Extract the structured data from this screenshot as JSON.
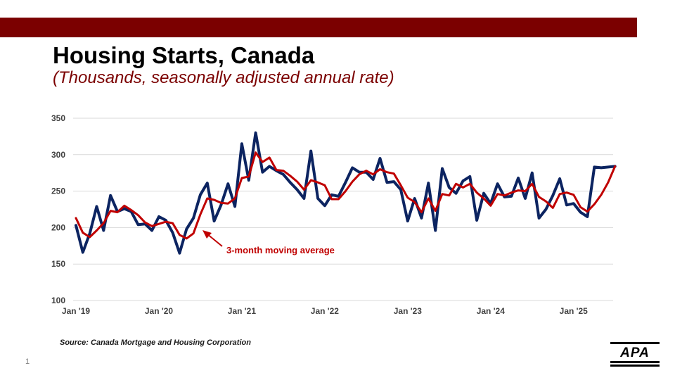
{
  "slide": {
    "title": "Housing Starts, Canada",
    "subtitle": "(Thousands, seasonally adjusted annual rate)",
    "source": "Source: Canada Mortgage and Housing Corporation",
    "page_number": "1",
    "logo_text": "APA",
    "colors": {
      "bar": "#7b0000",
      "title": "#000000",
      "subtitle": "#7b0000"
    }
  },
  "chart_data": {
    "type": "line",
    "title": "",
    "xlabel": "",
    "ylabel": "",
    "ylim": [
      100,
      350
    ],
    "y_ticks": [
      "100",
      "150",
      "200",
      "250",
      "300",
      "350"
    ],
    "x_tick_labels": [
      "Jan '19",
      "Jan '20",
      "Jan '21",
      "Jan '22",
      "Jan '23",
      "Jan '24",
      "Jan '25"
    ],
    "x_start": "Jan 2019",
    "x_end": "Jul 2025",
    "grid": true,
    "annotation": {
      "text": "3-month moving average",
      "color": "#c00000"
    },
    "series": [
      {
        "key": "monthly",
        "color": "#0c2461",
        "values": [
          203,
          166,
          192,
          229,
          196,
          244,
          222,
          226,
          222,
          204,
          205,
          196,
          215,
          210,
          193,
          165,
          198,
          213,
          245,
          261,
          209,
          231,
          260,
          229,
          315,
          265,
          330,
          276,
          284,
          278,
          273,
          262,
          252,
          240,
          305,
          240,
          230,
          245,
          243,
          262,
          282,
          276,
          276,
          266,
          295,
          262,
          263,
          252,
          209,
          240,
          213,
          261,
          196,
          281,
          255,
          247,
          264,
          270,
          210,
          247,
          233,
          260,
          242,
          243,
          268,
          240,
          275,
          213,
          225,
          244,
          267,
          231,
          233,
          221,
          215,
          283,
          282,
          283,
          284
        ]
      },
      {
        "key": "moving_average",
        "color": "#c00000",
        "values": [
          213,
          193,
          187,
          196,
          206,
          223,
          221,
          230,
          224,
          217,
          207,
          202,
          205,
          208,
          206,
          190,
          185,
          192,
          218,
          240,
          238,
          234,
          233,
          240,
          268,
          270,
          303,
          290,
          296,
          279,
          278,
          271,
          263,
          252,
          265,
          262,
          258,
          239,
          239,
          250,
          263,
          273,
          278,
          273,
          280,
          276,
          274,
          258,
          241,
          235,
          221,
          240,
          223,
          246,
          244,
          260,
          255,
          260,
          248,
          240,
          230,
          246,
          244,
          248,
          251,
          250,
          260,
          242,
          236,
          227,
          246,
          248,
          245,
          228,
          222,
          232,
          245,
          262,
          284
        ]
      }
    ]
  }
}
